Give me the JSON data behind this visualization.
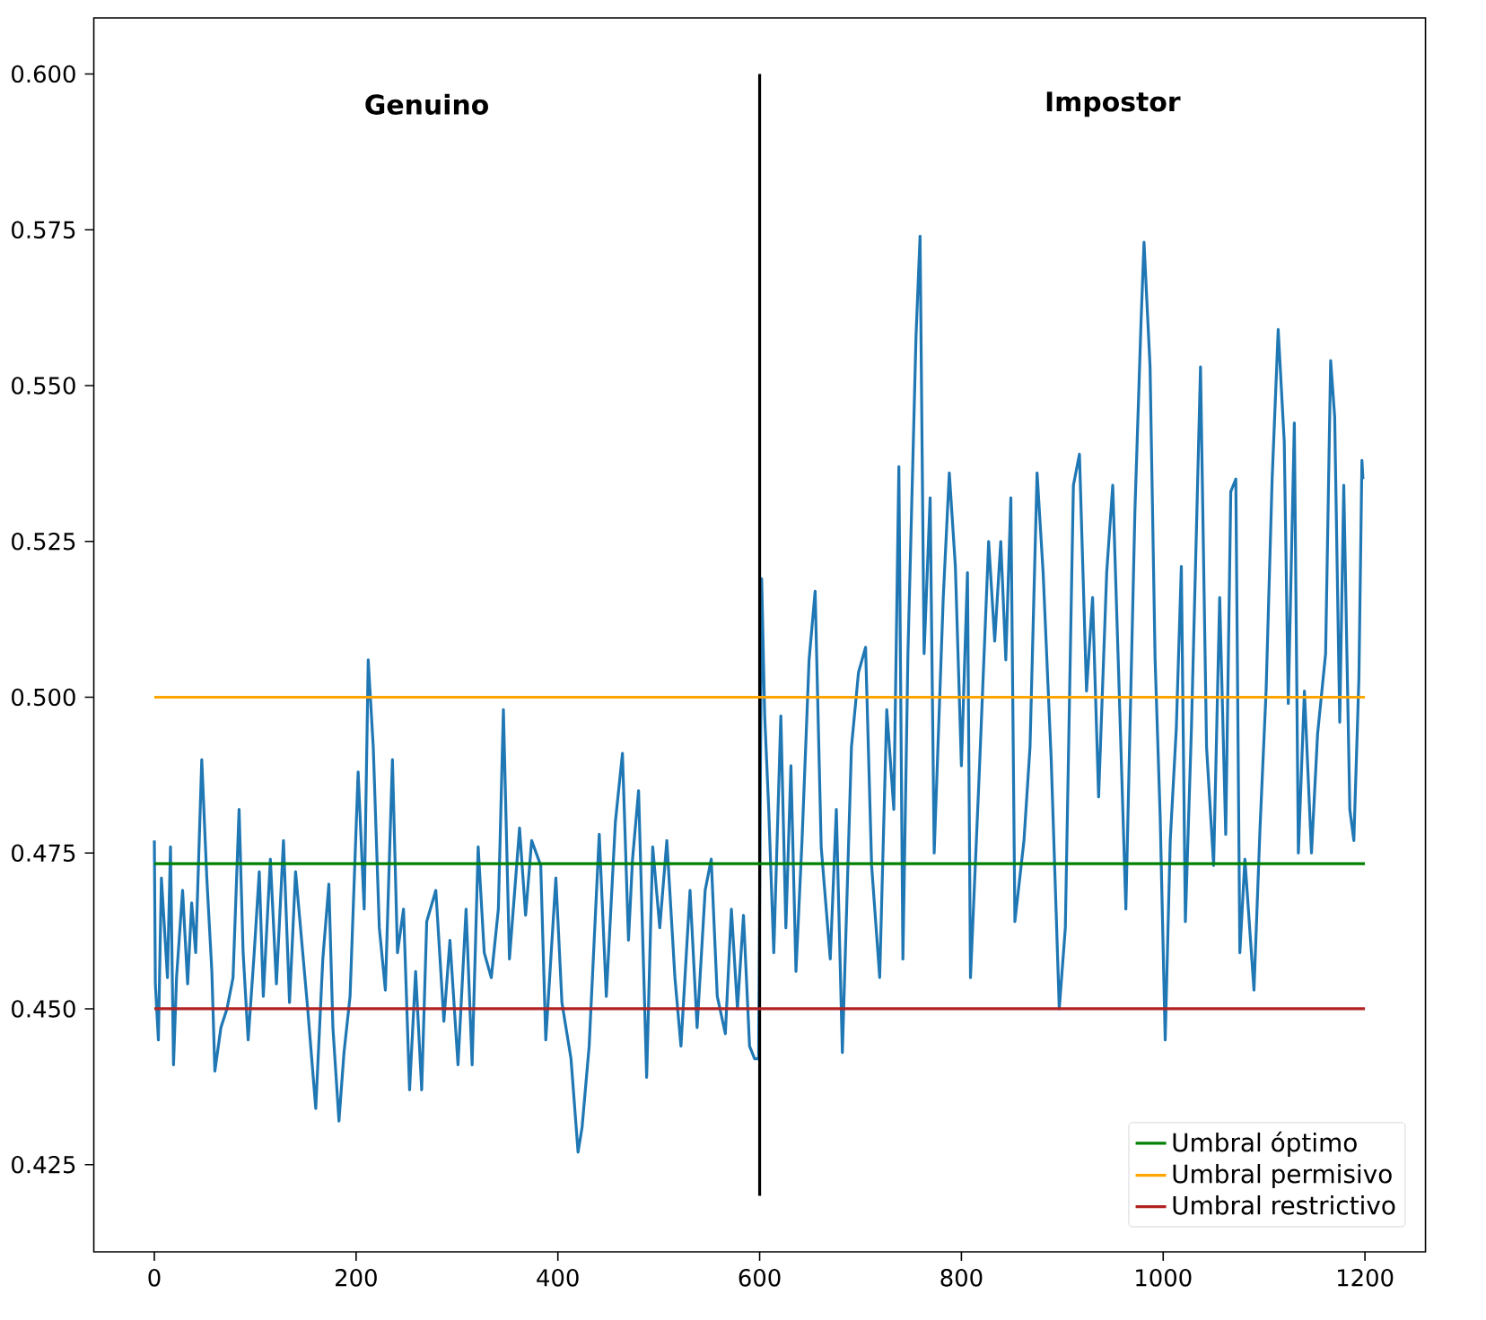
{
  "chart_data": {
    "type": "line",
    "xlim": [
      -60,
      1260
    ],
    "ylim": [
      0.411,
      0.609
    ],
    "xticks": [
      0,
      200,
      400,
      600,
      800,
      1000,
      1200
    ],
    "yticks": [
      {
        "value": 0.425,
        "label": "0.425"
      },
      {
        "value": 0.45,
        "label": "0.450"
      },
      {
        "value": 0.475,
        "label": "0.475"
      },
      {
        "value": 0.5,
        "label": "0.500"
      },
      {
        "value": 0.525,
        "label": "0.525"
      },
      {
        "value": 0.55,
        "label": "0.550"
      },
      {
        "value": 0.575,
        "label": "0.575"
      },
      {
        "value": 0.6,
        "label": "0.600"
      }
    ],
    "annotations": [
      "Genuino",
      "Impostor"
    ],
    "legend": "bottom right",
    "grid": false,
    "series": [
      {
        "color": "#1f77b4",
        "x": [
          0,
          1,
          4,
          7,
          13,
          16,
          19,
          22,
          28,
          33,
          37,
          41,
          47,
          52,
          57,
          60,
          66,
          72,
          78,
          84,
          88,
          93,
          99,
          104,
          108,
          115,
          121,
          128,
          134,
          140,
          146,
          152,
          160,
          167,
          173,
          177,
          183,
          188,
          194,
          202,
          208,
          212,
          217,
          223,
          229,
          236,
          241,
          247,
          253,
          259,
          265,
          270,
          279,
          287,
          293,
          301,
          309,
          315,
          321,
          327,
          334,
          341,
          346,
          352,
          362,
          368,
          374,
          383,
          388,
          398,
          404,
          413,
          420,
          424,
          431,
          436,
          441,
          448,
          457,
          464,
          470,
          474,
          480,
          488,
          494,
          501,
          508,
          516,
          522,
          531,
          538,
          546,
          552,
          558,
          566,
          572,
          578,
          584,
          590,
          595,
          599,
          602,
          605,
          609,
          614,
          621,
          626,
          631,
          636,
          642,
          649,
          655,
          661,
          670,
          676,
          682,
          691,
          698,
          705,
          711,
          719,
          726,
          733,
          738,
          742,
          747,
          755,
          759,
          763,
          769,
          773,
          782,
          788,
          794,
          800,
          806,
          809,
          818,
          827,
          833,
          839,
          844,
          849,
          853,
          862,
          868,
          875,
          881,
          889,
          897,
          903,
          911,
          917,
          924,
          930,
          936,
          944,
          950,
          956,
          963,
          972,
          978,
          981,
          987,
          992,
          997,
          1002,
          1007,
          1013,
          1018,
          1022,
          1028,
          1037,
          1043,
          1050,
          1056,
          1062,
          1067,
          1072,
          1076,
          1081,
          1090,
          1096,
          1102,
          1108,
          1114,
          1120,
          1124,
          1130,
          1134,
          1140,
          1147,
          1153,
          1161,
          1166,
          1170,
          1175,
          1179,
          1185,
          1189,
          1194,
          1197,
          1198
        ],
        "values": [
          0.477,
          0.454,
          0.445,
          0.471,
          0.455,
          0.476,
          0.441,
          0.455,
          0.469,
          0.454,
          0.467,
          0.459,
          0.49,
          0.471,
          0.456,
          0.44,
          0.447,
          0.45,
          0.455,
          0.482,
          0.459,
          0.445,
          0.459,
          0.472,
          0.452,
          0.474,
          0.454,
          0.477,
          0.451,
          0.472,
          0.461,
          0.45,
          0.434,
          0.458,
          0.47,
          0.447,
          0.432,
          0.443,
          0.452,
          0.488,
          0.466,
          0.506,
          0.492,
          0.463,
          0.453,
          0.49,
          0.459,
          0.466,
          0.437,
          0.456,
          0.437,
          0.464,
          0.469,
          0.448,
          0.461,
          0.441,
          0.466,
          0.441,
          0.476,
          0.459,
          0.455,
          0.466,
          0.498,
          0.458,
          0.479,
          0.465,
          0.477,
          0.473,
          0.445,
          0.471,
          0.451,
          0.442,
          0.427,
          0.431,
          0.444,
          0.461,
          0.478,
          0.452,
          0.48,
          0.491,
          0.461,
          0.474,
          0.485,
          0.439,
          0.476,
          0.463,
          0.477,
          0.455,
          0.444,
          0.469,
          0.447,
          0.469,
          0.474,
          0.452,
          0.446,
          0.466,
          0.45,
          0.465,
          0.444,
          0.442,
          0.442,
          0.519,
          0.497,
          0.482,
          0.459,
          0.497,
          0.463,
          0.489,
          0.456,
          0.477,
          0.506,
          0.517,
          0.476,
          0.458,
          0.482,
          0.443,
          0.492,
          0.504,
          0.508,
          0.473,
          0.455,
          0.498,
          0.482,
          0.537,
          0.458,
          0.507,
          0.558,
          0.574,
          0.507,
          0.532,
          0.475,
          0.516,
          0.536,
          0.521,
          0.489,
          0.52,
          0.455,
          0.489,
          0.525,
          0.509,
          0.525,
          0.506,
          0.532,
          0.464,
          0.477,
          0.492,
          0.536,
          0.52,
          0.49,
          0.45,
          0.463,
          0.534,
          0.539,
          0.501,
          0.516,
          0.484,
          0.52,
          0.534,
          0.503,
          0.466,
          0.53,
          0.56,
          0.573,
          0.553,
          0.506,
          0.481,
          0.445,
          0.477,
          0.495,
          0.521,
          0.464,
          0.495,
          0.553,
          0.492,
          0.473,
          0.516,
          0.478,
          0.533,
          0.535,
          0.459,
          0.474,
          0.453,
          0.479,
          0.501,
          0.535,
          0.559,
          0.541,
          0.499,
          0.544,
          0.475,
          0.501,
          0.475,
          0.494,
          0.507,
          0.554,
          0.545,
          0.496,
          0.534,
          0.482,
          0.477,
          0.503,
          0.538,
          0.535
        ]
      },
      {
        "color": "#000000",
        "x": [
          600,
          600
        ],
        "values": [
          0.42,
          0.6
        ]
      },
      {
        "name": "Umbral óptimo",
        "color": "#008000",
        "x": [
          0,
          1200
        ],
        "values": [
          0.4733,
          0.4733
        ]
      },
      {
        "name": "Umbral permisivo",
        "color": "#ffa500",
        "x": [
          0,
          1200
        ],
        "values": [
          0.5,
          0.5
        ]
      },
      {
        "name": "Umbral restrictivo",
        "color": "#b22222",
        "x": [
          0,
          1200
        ],
        "values": [
          0.45,
          0.45
        ]
      }
    ]
  }
}
